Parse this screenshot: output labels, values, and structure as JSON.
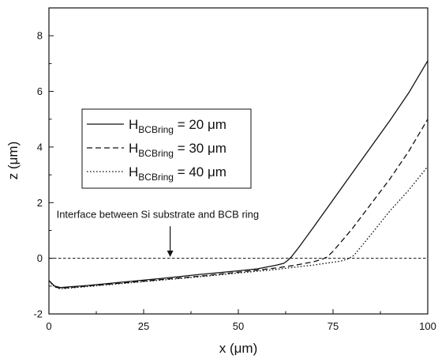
{
  "chart_data": {
    "type": "line",
    "xlabel": "x (μm)",
    "ylabel": "z (μm)",
    "xlim": [
      0,
      100
    ],
    "ylim": [
      -2,
      9
    ],
    "x_ticks": [
      0,
      25,
      50,
      75,
      100
    ],
    "y_ticks": [
      -2,
      0,
      2,
      4,
      6,
      8
    ],
    "x_tick_labels": [
      "0",
      "25",
      "50",
      "75",
      "100"
    ],
    "y_tick_labels": [
      "-2",
      "0",
      "2",
      "4",
      "6",
      "8"
    ],
    "grid": false,
    "legend_position": "left",
    "series": [
      {
        "name": "H_BCBring = 20 μm",
        "legend_main": "H",
        "legend_sub": "BCBring",
        "legend_value": " = 20 μm",
        "style": "solid",
        "color": "#111111",
        "points": [
          [
            0,
            -0.8
          ],
          [
            1.5,
            -1.0
          ],
          [
            3,
            -1.05
          ],
          [
            10,
            -0.98
          ],
          [
            20,
            -0.85
          ],
          [
            30,
            -0.72
          ],
          [
            40,
            -0.58
          ],
          [
            50,
            -0.45
          ],
          [
            55,
            -0.38
          ],
          [
            60,
            -0.25
          ],
          [
            62,
            -0.18
          ],
          [
            63,
            -0.08
          ],
          [
            64,
            0.05
          ],
          [
            66,
            0.4
          ],
          [
            70,
            1.15
          ],
          [
            75,
            2.1
          ],
          [
            80,
            3.05
          ],
          [
            85,
            4.0
          ],
          [
            90,
            4.95
          ],
          [
            95,
            5.95
          ],
          [
            100,
            7.1
          ]
        ]
      },
      {
        "name": "H_BCBring = 30 μm",
        "legend_main": "H",
        "legend_sub": "BCBring",
        "legend_value": " = 30 μm",
        "style": "dashed",
        "color": "#111111",
        "points": [
          [
            0,
            -0.8
          ],
          [
            1.5,
            -1.02
          ],
          [
            3,
            -1.08
          ],
          [
            10,
            -1.0
          ],
          [
            20,
            -0.88
          ],
          [
            30,
            -0.76
          ],
          [
            40,
            -0.64
          ],
          [
            50,
            -0.5
          ],
          [
            60,
            -0.35
          ],
          [
            65,
            -0.25
          ],
          [
            70,
            -0.12
          ],
          [
            72,
            -0.04
          ],
          [
            73.5,
            0.05
          ],
          [
            75,
            0.25
          ],
          [
            80,
            1.05
          ],
          [
            85,
            1.95
          ],
          [
            90,
            2.85
          ],
          [
            95,
            3.85
          ],
          [
            100,
            5.0
          ]
        ]
      },
      {
        "name": "H_BCBring = 40 μm",
        "legend_main": "H",
        "legend_sub": "BCBring",
        "legend_value": " = 40 μm",
        "style": "dotted",
        "color": "#111111",
        "points": [
          [
            0,
            -0.8
          ],
          [
            1.5,
            -1.03
          ],
          [
            3,
            -1.1
          ],
          [
            10,
            -1.02
          ],
          [
            20,
            -0.9
          ],
          [
            30,
            -0.78
          ],
          [
            40,
            -0.66
          ],
          [
            50,
            -0.53
          ],
          [
            60,
            -0.4
          ],
          [
            70,
            -0.24
          ],
          [
            77,
            -0.1
          ],
          [
            79,
            -0.02
          ],
          [
            80.5,
            0.1
          ],
          [
            82,
            0.35
          ],
          [
            85,
            0.85
          ],
          [
            90,
            1.7
          ],
          [
            95,
            2.45
          ],
          [
            100,
            3.3
          ]
        ]
      }
    ],
    "reference_line": {
      "y": 0,
      "style": "dashed"
    },
    "annotation": {
      "text": "Interface between Si substrate and BCB ring",
      "arrow_x": 32,
      "arrow_from_y": 1.15,
      "arrow_to_y": 0.05,
      "text_x": 2,
      "text_y": 1.45
    }
  }
}
